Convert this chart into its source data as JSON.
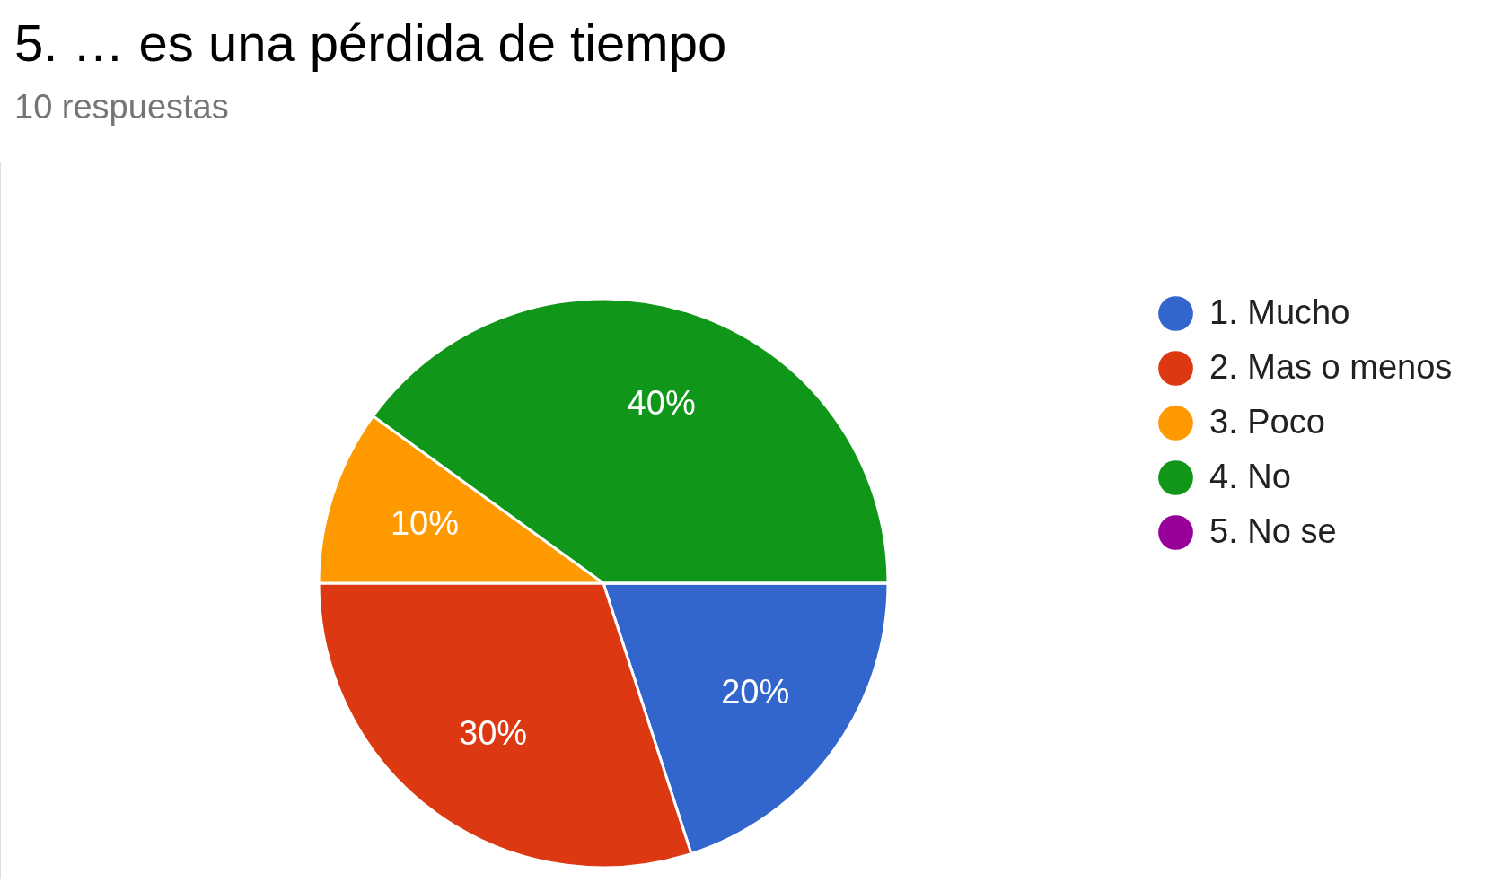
{
  "chart_data": {
    "type": "pie",
    "title": "5. … es una pérdida de tiempo",
    "subtitle": "10 respuestas",
    "categories": [
      "1. Mucho",
      "2. Mas o menos",
      "3. Poco",
      "4. No",
      "5. No se"
    ],
    "values": [
      20,
      30,
      10,
      40,
      0
    ],
    "colors": [
      "#3366cc",
      "#dc3912",
      "#ff9900",
      "#109618",
      "#990099"
    ],
    "value_labels": [
      "20%",
      "30%",
      "10%",
      "40%",
      null
    ],
    "legend": "right"
  }
}
